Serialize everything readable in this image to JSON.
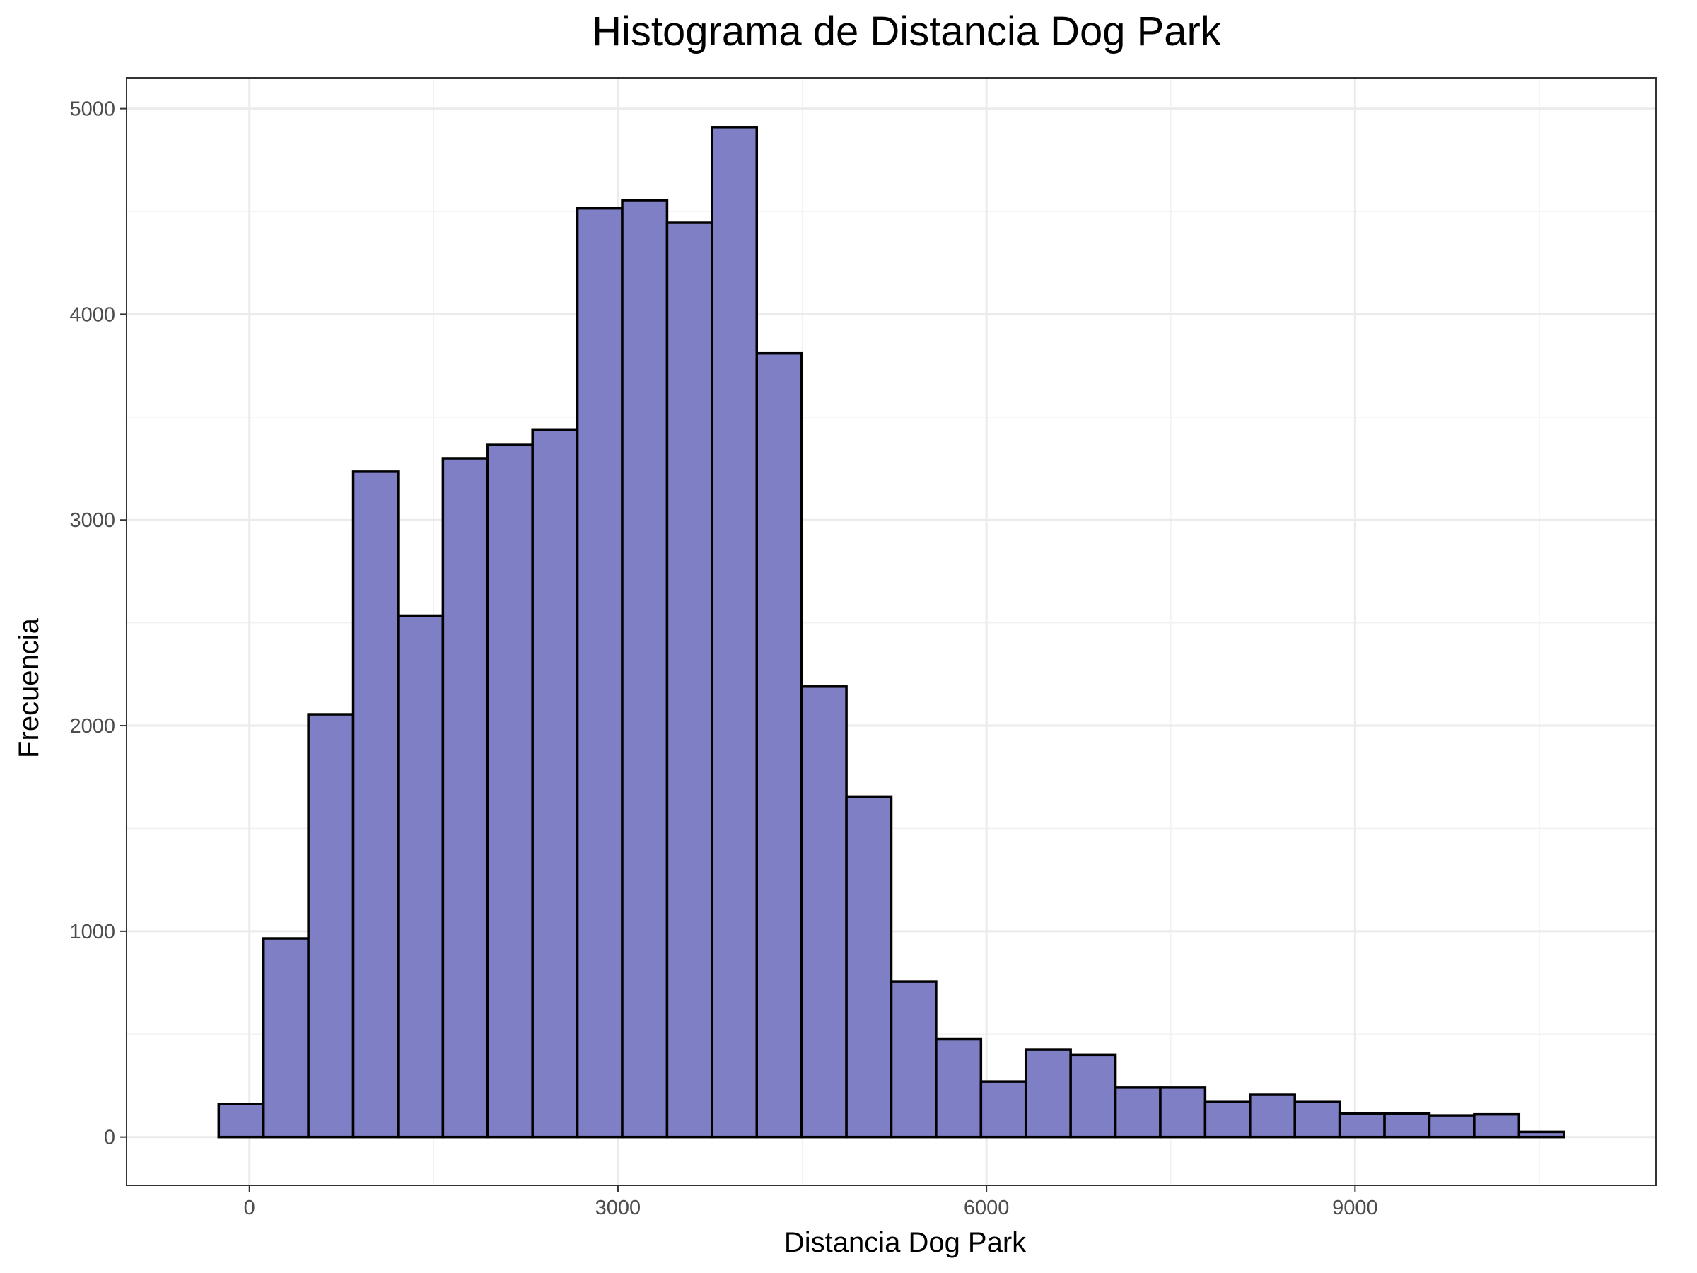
{
  "chart_data": {
    "type": "bar",
    "title": "Histograma de Distancia Dog Park",
    "xlabel": "Distancia Dog Park",
    "ylabel": "Frecuencia",
    "bin_width": 365,
    "bins": [
      {
        "x0": -250,
        "x1": 115,
        "count": 160
      },
      {
        "x0": 115,
        "x1": 480,
        "count": 965
      },
      {
        "x0": 480,
        "x1": 845,
        "count": 2055
      },
      {
        "x0": 845,
        "x1": 1210,
        "count": 3235
      },
      {
        "x0": 1210,
        "x1": 1575,
        "count": 2535
      },
      {
        "x0": 1575,
        "x1": 1940,
        "count": 3300
      },
      {
        "x0": 1940,
        "x1": 2305,
        "count": 3365
      },
      {
        "x0": 2305,
        "x1": 2670,
        "count": 3440
      },
      {
        "x0": 2670,
        "x1": 3035,
        "count": 4515
      },
      {
        "x0": 3035,
        "x1": 3400,
        "count": 4555
      },
      {
        "x0": 3400,
        "x1": 3765,
        "count": 4445
      },
      {
        "x0": 3765,
        "x1": 4130,
        "count": 4910
      },
      {
        "x0": 4130,
        "x1": 4495,
        "count": 3810
      },
      {
        "x0": 4495,
        "x1": 4860,
        "count": 2190
      },
      {
        "x0": 4860,
        "x1": 5225,
        "count": 1655
      },
      {
        "x0": 5225,
        "x1": 5590,
        "count": 755
      },
      {
        "x0": 5590,
        "x1": 5955,
        "count": 475
      },
      {
        "x0": 5955,
        "x1": 6320,
        "count": 270
      },
      {
        "x0": 6320,
        "x1": 6685,
        "count": 425
      },
      {
        "x0": 6685,
        "x1": 7050,
        "count": 400
      },
      {
        "x0": 7050,
        "x1": 7415,
        "count": 240
      },
      {
        "x0": 7415,
        "x1": 7780,
        "count": 240
      },
      {
        "x0": 7780,
        "x1": 8145,
        "count": 170
      },
      {
        "x0": 8145,
        "x1": 8510,
        "count": 205
      },
      {
        "x0": 8510,
        "x1": 8875,
        "count": 170
      },
      {
        "x0": 8875,
        "x1": 9240,
        "count": 115
      },
      {
        "x0": 9240,
        "x1": 9605,
        "count": 115
      },
      {
        "x0": 9605,
        "x1": 9970,
        "count": 105
      },
      {
        "x0": 9970,
        "x1": 10335,
        "count": 110
      },
      {
        "x0": 10335,
        "x1": 10700,
        "count": 25
      }
    ],
    "xlim": [
      -1000,
      11450
    ],
    "ylim": [
      -235,
      5150
    ],
    "xticks": [
      0,
      3000,
      6000,
      9000
    ],
    "xtick_labels": [
      "0",
      "3000",
      "6000",
      "9000"
    ],
    "xminor": [
      1500,
      4500,
      7500,
      10500
    ],
    "yticks": [
      0,
      1000,
      2000,
      3000,
      4000,
      5000
    ],
    "ytick_labels": [
      "0",
      "1000",
      "2000",
      "3000",
      "4000",
      "5000"
    ],
    "yminor": [
      500,
      1500,
      2500,
      3500,
      4500
    ],
    "bar_color": "#7f7fc6",
    "bar_edge_color": "#000000",
    "grid": true,
    "legend": "none"
  }
}
